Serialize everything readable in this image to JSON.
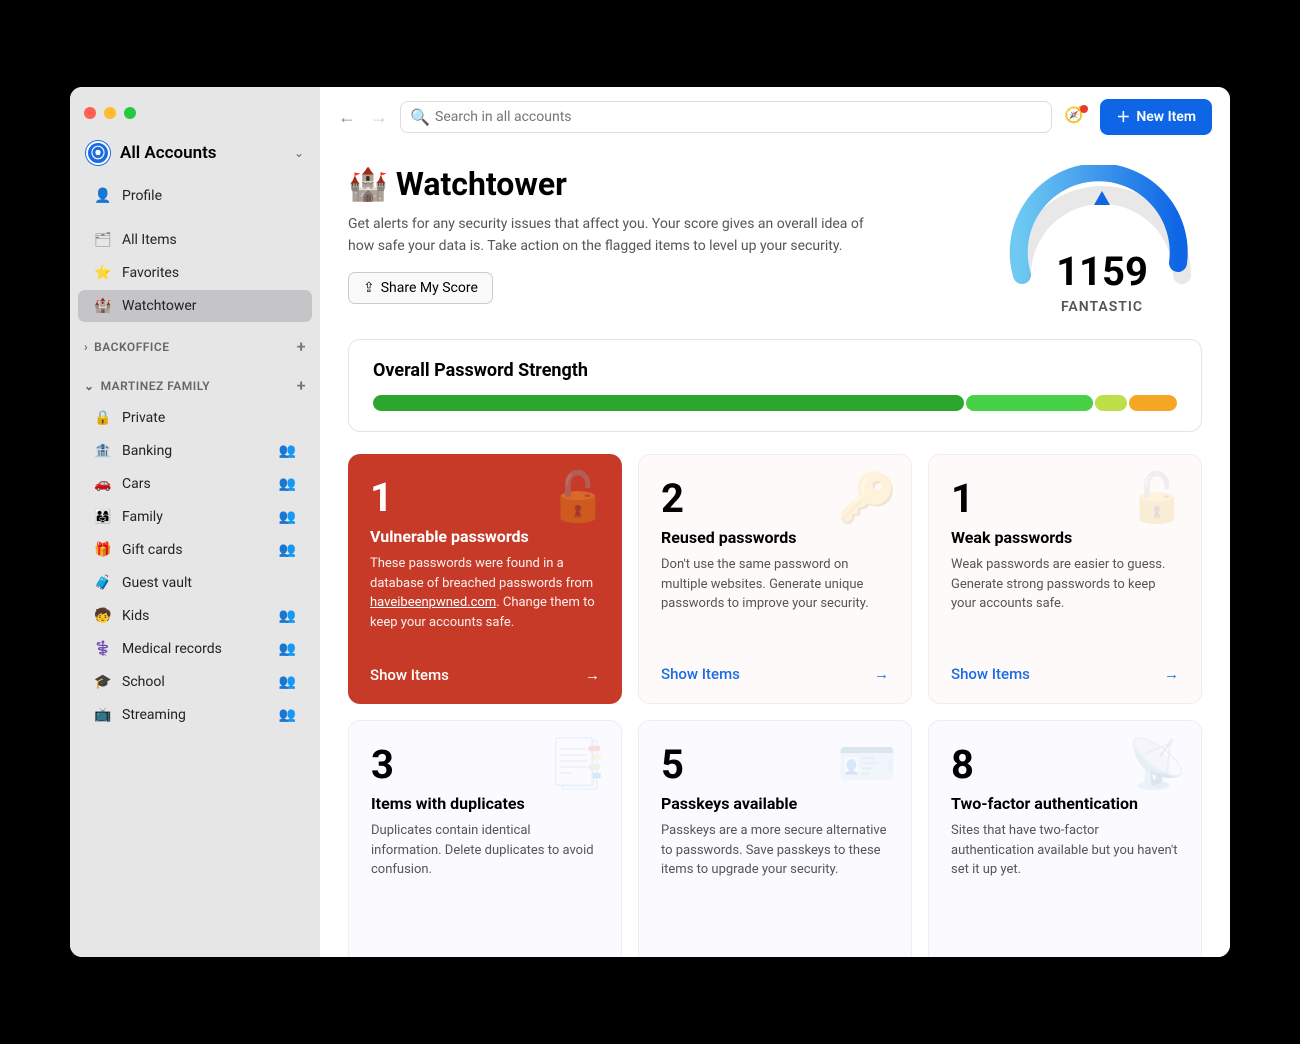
{
  "traffic_colors": {
    "close": "#ff5f57",
    "min": "#febc2e",
    "max": "#28c840"
  },
  "account": {
    "title": "All Accounts"
  },
  "sidebar": {
    "profile": "Profile",
    "main_items": [
      {
        "icon": "🗂",
        "label": "All Items",
        "active": false
      },
      {
        "icon": "⭐",
        "label": "Favorites",
        "active": false,
        "icon_color": "#f5b400"
      },
      {
        "icon": "🏰",
        "label": "Watchtower",
        "active": true,
        "icon_color": "#888"
      }
    ],
    "sections": [
      {
        "title": "BACKOFFICE",
        "collapsed": true,
        "items": []
      },
      {
        "title": "MARTINEZ FAMILY",
        "collapsed": false,
        "items": [
          {
            "icon": "🔒",
            "label": "Private"
          },
          {
            "icon": "🏦",
            "label": "Banking",
            "shared": true,
            "icon_color": "#1a6ce0"
          },
          {
            "icon": "🚗",
            "label": "Cars",
            "shared": true,
            "icon_color": "#e0557a"
          },
          {
            "icon": "👨‍👩‍👧",
            "label": "Family",
            "shared": true,
            "icon_color": "#e08a1a"
          },
          {
            "icon": "🎁",
            "label": "Gift cards",
            "shared": true,
            "icon_color": "#e0557a"
          },
          {
            "icon": "🧳",
            "label": "Guest vault",
            "icon_color": "#1a6ce0"
          },
          {
            "icon": "🧒",
            "label": "Kids",
            "shared": true,
            "icon_color": "#2ab05a"
          },
          {
            "icon": "⚕️",
            "label": "Medical records",
            "shared": true,
            "icon_color": "#e0557a"
          },
          {
            "icon": "🎓",
            "label": "School",
            "shared": true,
            "icon_color": "#1a9be0"
          },
          {
            "icon": "📺",
            "label": "Streaming",
            "shared": true,
            "icon_color": "#2ab05a"
          }
        ]
      }
    ]
  },
  "topbar": {
    "search_placeholder": "Search in all accounts",
    "new_item": "New Item"
  },
  "hero": {
    "title": "Watchtower",
    "desc": "Get alerts for any security issues that affect you. Your score gives an overall idea of how safe your data is. Take action on the flagged items to level up your security.",
    "share_btn": "Share My Score",
    "score": "1159",
    "score_label": "FANTASTIC"
  },
  "strength": {
    "title": "Overall Password Strength",
    "segments": [
      {
        "color": "#2da62f",
        "width": 74
      },
      {
        "color": "#46d146",
        "width": 16
      },
      {
        "color": "#bde04a",
        "width": 4
      },
      {
        "color": "#f5a623",
        "width": 6
      }
    ]
  },
  "cards": [
    {
      "num": "1",
      "title": "Vulnerable passwords",
      "desc": "These passwords were found in a database of breached passwords from haveibeenpwned.com. Change them to keep your accounts safe.",
      "action": "Show Items",
      "style": "danger",
      "icon": "🔓"
    },
    {
      "num": "2",
      "title": "Reused passwords",
      "desc": "Don't use the same password on multiple websites. Generate unique passwords to improve your security.",
      "action": "Show Items",
      "style": "reused",
      "icon": "🔑",
      "bg": "#fffafa"
    },
    {
      "num": "1",
      "title": "Weak passwords",
      "desc": "Weak passwords are easier to guess. Generate strong passwords to keep your accounts safe.",
      "action": "Show Items",
      "style": "weak",
      "icon": "🔓",
      "bg": "#fffafa"
    },
    {
      "num": "3",
      "title": "Items with duplicates",
      "desc": "Duplicates contain identical information. Delete duplicates to avoid confusion.",
      "action": "",
      "style": "purple",
      "icon": "📑",
      "bg": "#fbfaff"
    },
    {
      "num": "5",
      "title": "Passkeys available",
      "desc": "Passkeys are a more secure alternative to passwords. Save passkeys to these items to upgrade your security.",
      "action": "",
      "style": "purple",
      "icon": "🪪",
      "bg": "#fbfaff"
    },
    {
      "num": "8",
      "title": "Two-factor authentication",
      "desc": "Sites that have two-factor authentication available but you haven't set it up yet.",
      "action": "",
      "style": "purple",
      "icon": "📡",
      "bg": "#fbfaff"
    }
  ]
}
